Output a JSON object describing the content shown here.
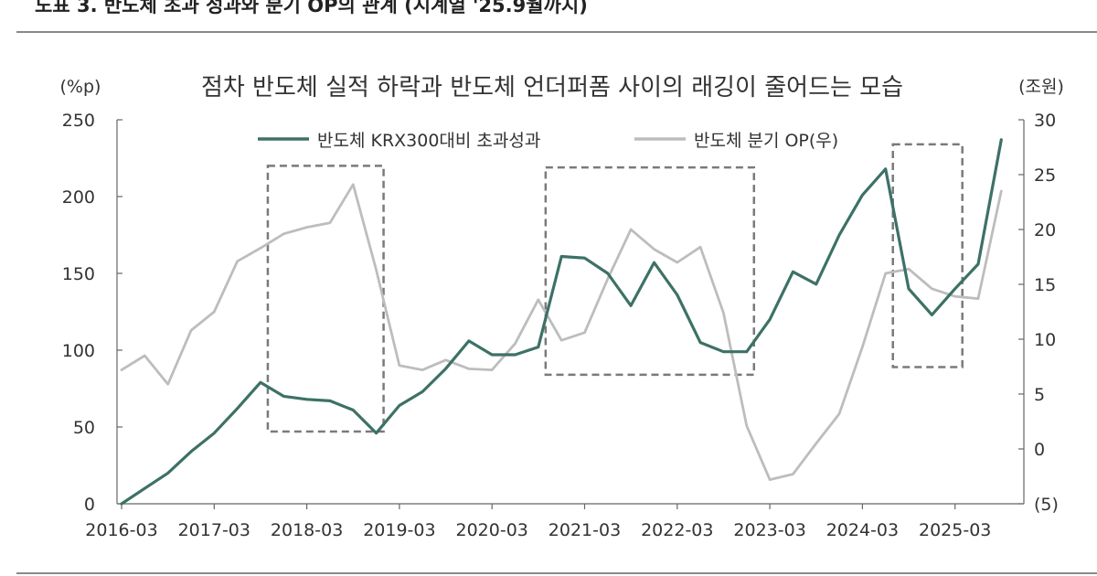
{
  "page": {
    "header_title": "도표 3. 반도체 초과 성과와 분기 OP의 관계 (시계열 '25.9월까지)"
  },
  "chart_data": {
    "type": "line",
    "title": "점차 반도체 실적 하락과 반도체 언더퍼폼 사이의 래깅이 줄어드는 모습",
    "y_left_unit": "(%p)",
    "y_right_unit": "(조원)",
    "x_tick_labels": [
      "2016-03",
      "2017-03",
      "2018-03",
      "2019-03",
      "2020-03",
      "2021-03",
      "2022-03",
      "2023-03",
      "2024-03",
      "2025-03"
    ],
    "y_left_ticks": [
      "0",
      "50",
      "100",
      "150",
      "200",
      "250"
    ],
    "y_right_ticks": [
      "(5)",
      "0",
      "5",
      "10",
      "15",
      "20",
      "25",
      "30"
    ],
    "ylim_left": [
      0,
      250
    ],
    "ylim_right": [
      -5,
      30
    ],
    "legend_position": "top",
    "grid": false,
    "x": [
      "2016-03",
      "2016-06",
      "2016-09",
      "2016-12",
      "2017-03",
      "2017-06",
      "2017-09",
      "2017-12",
      "2018-03",
      "2018-06",
      "2018-09",
      "2018-12",
      "2019-03",
      "2019-06",
      "2019-09",
      "2019-12",
      "2020-03",
      "2020-06",
      "2020-09",
      "2020-12",
      "2021-03",
      "2021-06",
      "2021-09",
      "2021-12",
      "2022-03",
      "2022-06",
      "2022-09",
      "2022-12",
      "2023-03",
      "2023-06",
      "2023-09",
      "2023-12",
      "2024-03",
      "2024-06",
      "2024-09",
      "2024-12",
      "2025-03",
      "2025-06",
      "2025-09"
    ],
    "series": [
      {
        "name": "반도체 KRX300대비 초과성과",
        "axis": "left",
        "color": "#3d7166",
        "values": [
          0,
          10,
          20,
          34,
          46,
          62,
          79,
          70,
          68,
          67,
          61,
          46,
          64,
          73,
          88,
          106,
          97,
          97,
          102,
          161,
          160,
          150,
          129,
          157,
          136,
          105,
          99,
          99,
          120,
          151,
          143,
          175,
          201,
          218,
          140,
          123,
          140,
          156,
          237
        ]
      },
      {
        "name": "반도체 분기 OP(우)",
        "axis": "right",
        "color": "#bdbdbd",
        "values": [
          7.2,
          8.5,
          5.9,
          10.8,
          12.5,
          17.1,
          18.3,
          19.6,
          20.2,
          20.6,
          24.1,
          16.3,
          7.6,
          7.2,
          8.1,
          7.3,
          7.2,
          9.6,
          13.6,
          9.9,
          10.6,
          15.5,
          20.0,
          18.2,
          17.0,
          18.4,
          12.4,
          2.1,
          -2.8,
          -2.3,
          0.5,
          3.2,
          9.3,
          16.0,
          16.4,
          14.6,
          13.9,
          13.7,
          23.5
        ]
      }
    ],
    "highlight_boxes": [
      {
        "x_from": "2017-09",
        "x_to": "2018-12",
        "y_from": 47,
        "y_to": 220
      },
      {
        "x_from": "2020-09",
        "x_to": "2022-12",
        "y_from": 84,
        "y_to": 219
      },
      {
        "x_from": "2024-06",
        "x_to": "2025-03",
        "y_from": 89,
        "y_to": 234
      }
    ]
  }
}
